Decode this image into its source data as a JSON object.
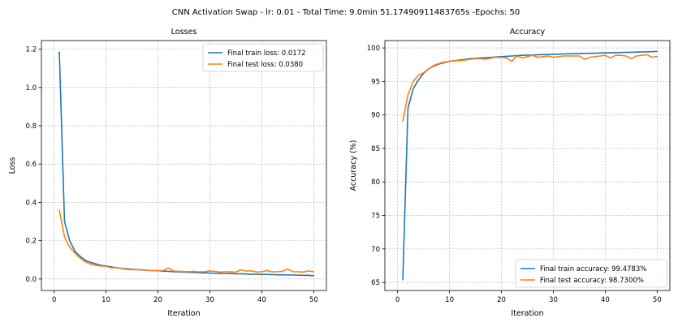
{
  "figure": {
    "suptitle": "CNN Activation Swap - lr: 0.01 - Total Time: 9.0min 51.17490911483765s -Epochs: 50"
  },
  "chart_data": [
    {
      "type": "line",
      "title": "Losses",
      "xlabel": "Iteration",
      "ylabel": "Loss",
      "xlim": [
        -2.45,
        52.45
      ],
      "ylim": [
        -0.06,
        1.245
      ],
      "xticks": [
        0,
        10,
        20,
        30,
        40,
        50
      ],
      "yticks": [
        0.0,
        0.2,
        0.4,
        0.6,
        0.8,
        1.0,
        1.2
      ],
      "ytick_labels": [
        "0.0",
        "0.2",
        "0.4",
        "0.6",
        "0.8",
        "1.0",
        "1.2"
      ],
      "grid": true,
      "legend_position": "top-right",
      "x": [
        1,
        2,
        3,
        4,
        5,
        6,
        7,
        8,
        9,
        10,
        11,
        12,
        13,
        14,
        15,
        16,
        17,
        18,
        19,
        20,
        21,
        22,
        23,
        24,
        25,
        26,
        27,
        28,
        29,
        30,
        31,
        32,
        33,
        34,
        35,
        36,
        37,
        38,
        39,
        40,
        41,
        42,
        43,
        44,
        45,
        46,
        47,
        48,
        49,
        50
      ],
      "series": [
        {
          "name": "Final train loss: 0.0172",
          "color": "#1f77b4",
          "values": [
            1.185,
            0.3,
            0.2,
            0.145,
            0.118,
            0.098,
            0.087,
            0.079,
            0.072,
            0.068,
            0.063,
            0.059,
            0.056,
            0.053,
            0.051,
            0.049,
            0.047,
            0.045,
            0.044,
            0.043,
            0.041,
            0.04,
            0.038,
            0.037,
            0.036,
            0.035,
            0.034,
            0.033,
            0.032,
            0.031,
            0.03,
            0.029,
            0.029,
            0.028,
            0.027,
            0.027,
            0.026,
            0.025,
            0.025,
            0.024,
            0.024,
            0.023,
            0.022,
            0.022,
            0.021,
            0.021,
            0.02,
            0.019,
            0.019,
            0.0172
          ]
        },
        {
          "name": "Final test loss: 0.0380",
          "color": "#ff7f0e",
          "values": [
            0.36,
            0.22,
            0.165,
            0.135,
            0.11,
            0.09,
            0.078,
            0.072,
            0.068,
            0.066,
            0.058,
            0.06,
            0.055,
            0.05,
            0.049,
            0.048,
            0.048,
            0.046,
            0.043,
            0.043,
            0.044,
            0.058,
            0.042,
            0.04,
            0.039,
            0.038,
            0.04,
            0.037,
            0.038,
            0.042,
            0.039,
            0.036,
            0.038,
            0.037,
            0.036,
            0.048,
            0.041,
            0.043,
            0.036,
            0.038,
            0.044,
            0.037,
            0.038,
            0.04,
            0.052,
            0.038,
            0.037,
            0.036,
            0.042,
            0.038
          ]
        }
      ]
    },
    {
      "type": "line",
      "title": "Accuracy",
      "xlabel": "Iteration",
      "ylabel": "Accuracy (%)",
      "xlim": [
        -2.45,
        52.45
      ],
      "ylim": [
        63.8,
        101.1
      ],
      "xticks": [
        0,
        10,
        20,
        30,
        40,
        50
      ],
      "yticks": [
        65,
        70,
        75,
        80,
        85,
        90,
        95,
        100
      ],
      "ytick_labels": [
        "65",
        "70",
        "75",
        "80",
        "85",
        "90",
        "95",
        "100"
      ],
      "grid": true,
      "legend_position": "bottom-right",
      "x": [
        1,
        2,
        3,
        4,
        5,
        6,
        7,
        8,
        9,
        10,
        11,
        12,
        13,
        14,
        15,
        16,
        17,
        18,
        19,
        20,
        21,
        22,
        23,
        24,
        25,
        26,
        27,
        28,
        29,
        30,
        31,
        32,
        33,
        34,
        35,
        36,
        37,
        38,
        39,
        40,
        41,
        42,
        43,
        44,
        45,
        46,
        47,
        48,
        49,
        50
      ],
      "series": [
        {
          "name": "Final train accuracy: 99.4783%",
          "color": "#1f77b4",
          "values": [
            65.4,
            91.0,
            93.9,
            95.2,
            96.2,
            96.9,
            97.3,
            97.6,
            97.8,
            98.0,
            98.1,
            98.2,
            98.3,
            98.4,
            98.45,
            98.5,
            98.55,
            98.6,
            98.65,
            98.7,
            98.75,
            98.8,
            98.85,
            98.9,
            98.92,
            98.95,
            98.98,
            99.0,
            99.02,
            99.05,
            99.08,
            99.1,
            99.12,
            99.14,
            99.16,
            99.18,
            99.2,
            99.22,
            99.24,
            99.26,
            99.28,
            99.3,
            99.32,
            99.34,
            99.36,
            99.38,
            99.4,
            99.42,
            99.44,
            99.48
          ]
        },
        {
          "name": "Final test accuracy: 98.7300%",
          "color": "#ff7f0e",
          "values": [
            89.1,
            93.0,
            95.0,
            95.9,
            96.3,
            96.9,
            97.4,
            97.7,
            97.9,
            98.0,
            98.1,
            98.1,
            98.2,
            98.3,
            98.4,
            98.4,
            98.3,
            98.5,
            98.6,
            98.6,
            98.5,
            98.0,
            98.8,
            98.5,
            98.7,
            98.9,
            98.6,
            98.7,
            98.8,
            98.6,
            98.7,
            98.8,
            98.8,
            98.8,
            98.8,
            98.3,
            98.6,
            98.7,
            98.8,
            98.9,
            98.5,
            98.9,
            98.9,
            98.8,
            98.4,
            98.8,
            98.9,
            99.0,
            98.6,
            98.73
          ]
        }
      ]
    }
  ]
}
